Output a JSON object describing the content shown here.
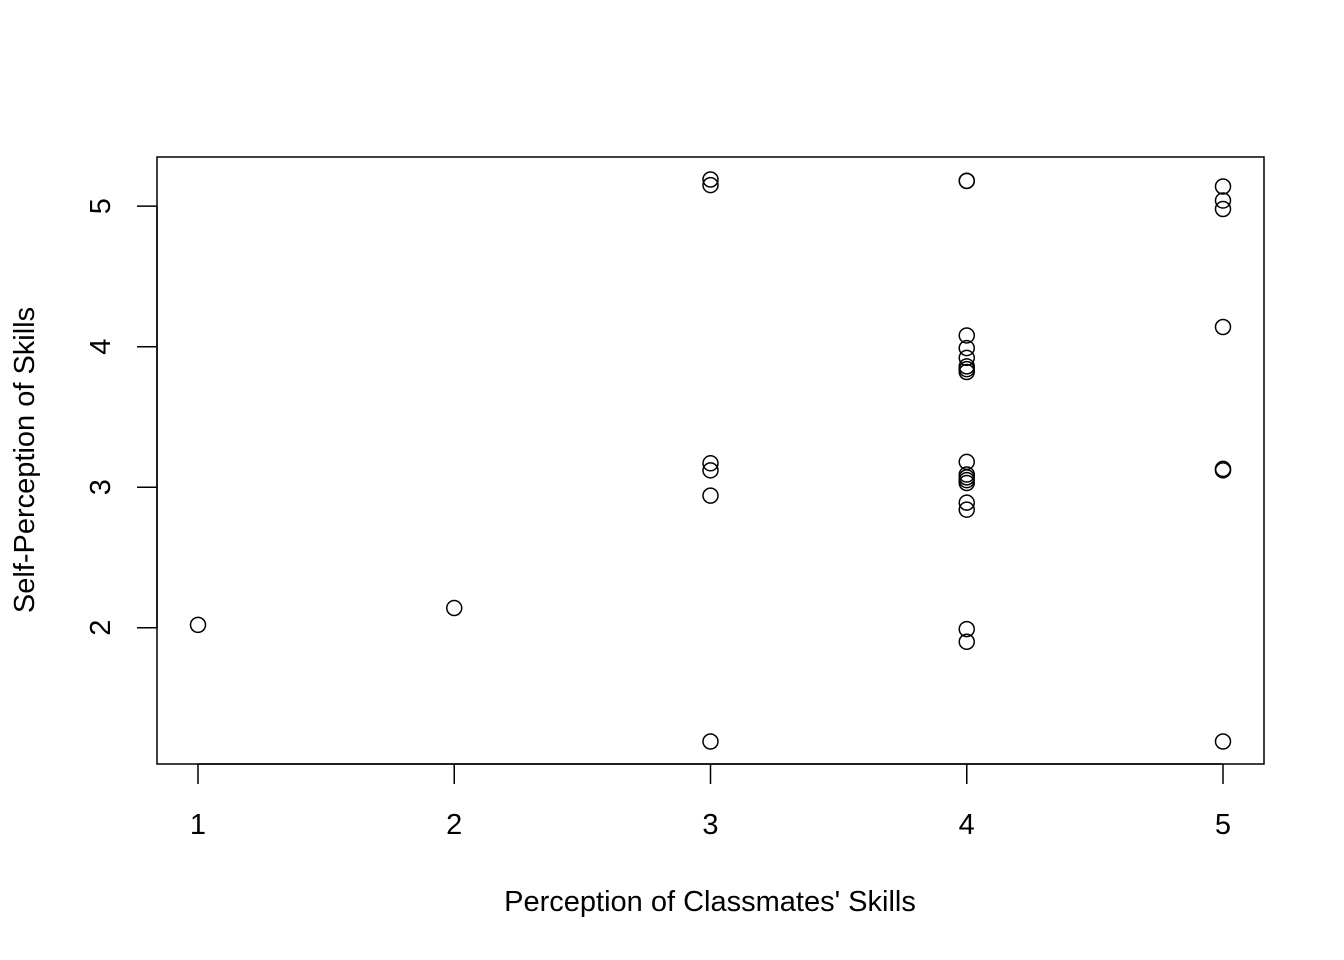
{
  "chart_data": {
    "type": "scatter",
    "title": "",
    "xlabel": "Perception of Classmates' Skills",
    "ylabel": "Self-Perception of Skills",
    "xlim": [
      0.84,
      5.16
    ],
    "ylim": [
      1.03,
      5.35
    ],
    "x_ticks": [
      1,
      2,
      3,
      4,
      5
    ],
    "y_ticks": [
      2,
      3,
      4,
      5
    ],
    "x_tick_labels": [
      "1",
      "2",
      "3",
      "4",
      "5"
    ],
    "y_tick_labels": [
      "2",
      "3",
      "4",
      "5"
    ],
    "grid": false,
    "legend": "none",
    "marker": "open-circle",
    "points": [
      {
        "x": 1,
        "y": 2.02
      },
      {
        "x": 2,
        "y": 2.14
      },
      {
        "x": 3,
        "y": 5.19
      },
      {
        "x": 3,
        "y": 5.15
      },
      {
        "x": 3,
        "y": 3.17
      },
      {
        "x": 3,
        "y": 3.12
      },
      {
        "x": 3,
        "y": 2.94
      },
      {
        "x": 3,
        "y": 1.19
      },
      {
        "x": 4,
        "y": 5.18
      },
      {
        "x": 4,
        "y": 5.18
      },
      {
        "x": 4,
        "y": 4.08
      },
      {
        "x": 4,
        "y": 3.99
      },
      {
        "x": 4,
        "y": 3.92
      },
      {
        "x": 4,
        "y": 3.86
      },
      {
        "x": 4,
        "y": 3.84
      },
      {
        "x": 4,
        "y": 3.82
      },
      {
        "x": 4,
        "y": 3.18
      },
      {
        "x": 4,
        "y": 3.09
      },
      {
        "x": 4,
        "y": 3.07
      },
      {
        "x": 4,
        "y": 3.05
      },
      {
        "x": 4,
        "y": 3.03
      },
      {
        "x": 4,
        "y": 2.89
      },
      {
        "x": 4,
        "y": 2.84
      },
      {
        "x": 4,
        "y": 1.99
      },
      {
        "x": 4,
        "y": 1.9
      },
      {
        "x": 5,
        "y": 5.14
      },
      {
        "x": 5,
        "y": 5.04
      },
      {
        "x": 5,
        "y": 4.98
      },
      {
        "x": 5,
        "y": 4.14
      },
      {
        "x": 5,
        "y": 3.13
      },
      {
        "x": 5,
        "y": 3.12
      },
      {
        "x": 5,
        "y": 1.19
      }
    ]
  }
}
